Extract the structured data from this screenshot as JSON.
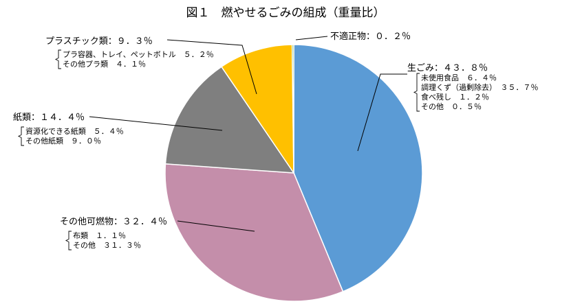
{
  "chart_data": {
    "type": "pie",
    "title": "図１　燃やせるごみの組成（重量比）",
    "slices": [
      {
        "name": "生ごみ",
        "label": "生ごみ：４３．８％",
        "value": 43.8,
        "color": "#5B9BD5",
        "breakdown": [
          "未使用食品　６．４％",
          "調理くず（過剰除去）　３５．７％",
          "食べ残し　１．２％",
          "その他　０．５％"
        ]
      },
      {
        "name": "その他可燃物",
        "label": "その他可燃物：３２．４％",
        "value": 32.4,
        "color": "#C48EAA",
        "breakdown": [
          "布類　１．１％",
          "その他　３１．３％"
        ]
      },
      {
        "name": "紙類",
        "label": "紙類：１４．４％",
        "value": 14.4,
        "color": "#7F7F7F",
        "breakdown": [
          "資源化できる紙類　５．４％",
          "その他紙類　９．０％"
        ]
      },
      {
        "name": "プラスチック類",
        "label": "プラスチック類：９．３％",
        "value": 9.3,
        "color": "#FFC000",
        "breakdown": [
          "プラ容器、トレイ、ペットボトル　５．２％",
          "その他プラ類　４．１％"
        ]
      },
      {
        "name": "不適正物",
        "label": "不適正物：０．２％",
        "value": 0.2,
        "color": "#70AD47",
        "breakdown": []
      }
    ]
  }
}
